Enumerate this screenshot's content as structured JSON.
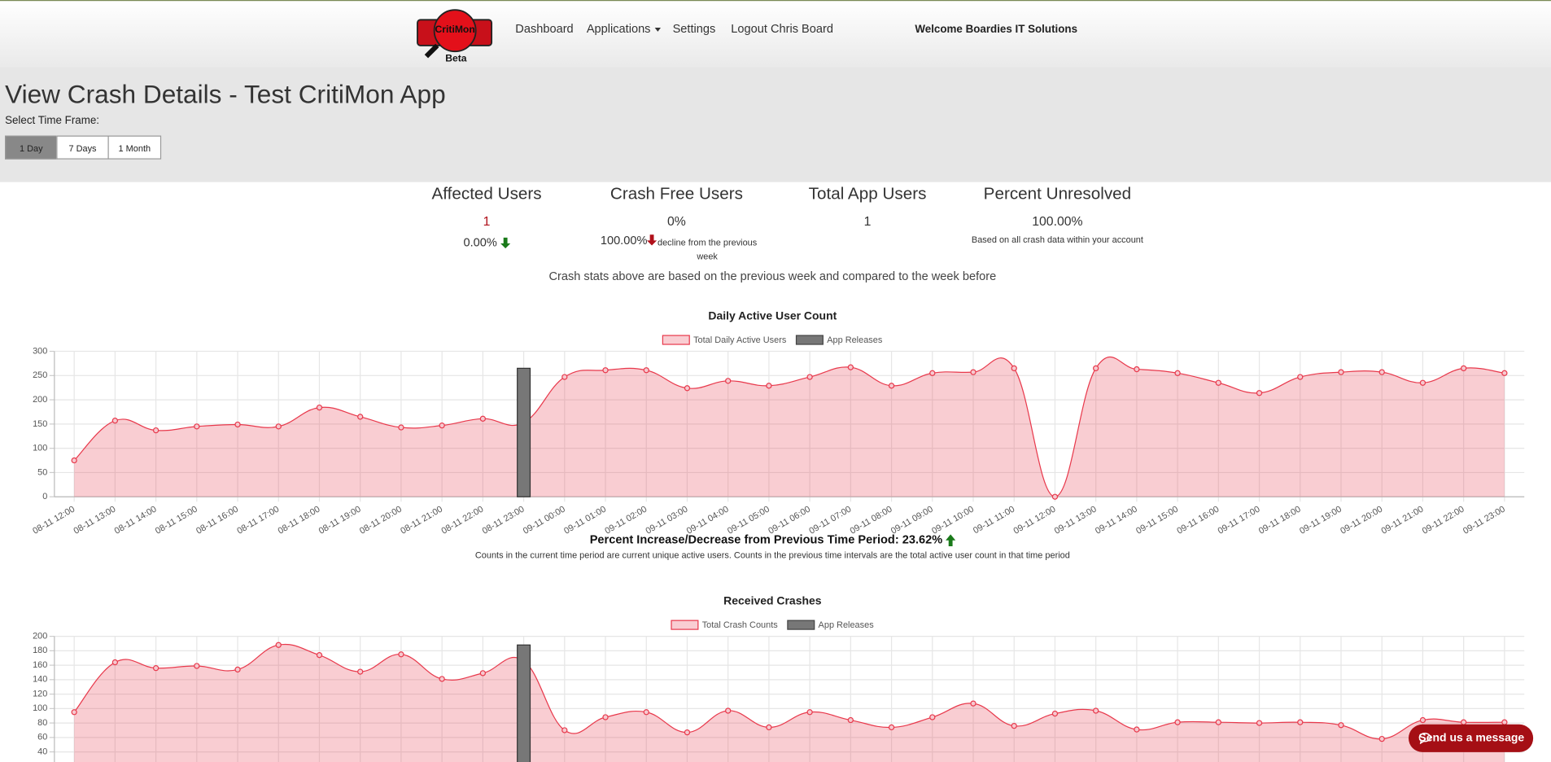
{
  "nav": {
    "logo_text": "CritiMon",
    "logo_sub": "Beta",
    "links": [
      "Dashboard",
      "Applications",
      "Settings",
      "Logout Chris Board"
    ],
    "welcome": "Welcome Boardies IT Solutions"
  },
  "header": {
    "title": "View Crash Details - Test CritiMon App",
    "timeframe_label": "Select Time Frame:",
    "timeframes": [
      "1 Day",
      "7 Days",
      "1 Month"
    ]
  },
  "stats": [
    {
      "title": "Affected Users",
      "value": "1",
      "change": "0.00%"
    },
    {
      "title": "Crash Free Users",
      "value": "0%",
      "change": "100.00%",
      "note": "decline from the previous week"
    },
    {
      "title": "Total App Users",
      "value": "1"
    },
    {
      "title": "Percent Unresolved",
      "value": "100.00%",
      "note": "Based on all crash data within your account"
    }
  ],
  "stats_note": "Crash stats above are based on the previous week and compared to the week before",
  "chart_data": [
    {
      "type": "line",
      "title": "Daily Active User Count",
      "categories": [
        "08-11 12:00",
        "08-11 13:00",
        "08-11 14:00",
        "08-11 15:00",
        "08-11 16:00",
        "08-11 17:00",
        "08-11 18:00",
        "08-11 19:00",
        "08-11 20:00",
        "08-11 21:00",
        "08-11 22:00",
        "08-11 23:00",
        "09-11 00:00",
        "09-11 01:00",
        "09-11 02:00",
        "09-11 03:00",
        "09-11 04:00",
        "09-11 05:00",
        "09-11 06:00",
        "09-11 07:00",
        "09-11 08:00",
        "09-11 09:00",
        "09-11 10:00",
        "09-11 11:00",
        "09-11 12:00",
        "09-11 13:00",
        "09-11 14:00",
        "09-11 15:00",
        "09-11 16:00",
        "09-11 17:00",
        "09-11 18:00",
        "09-11 19:00",
        "09-11 20:00",
        "09-11 21:00",
        "09-11 22:00",
        "09-11 23:00"
      ],
      "series": [
        {
          "name": "Total Daily Active Users",
          "type": "area",
          "color": "#e8394c",
          "values": [
            75,
            157,
            137,
            145,
            149,
            145,
            184,
            165,
            143,
            147,
            161,
            153,
            247,
            261,
            261,
            224,
            239,
            229,
            247,
            267,
            229,
            255,
            257,
            265,
            0,
            265,
            263,
            255,
            235,
            214,
            247,
            257,
            257,
            235,
            265,
            255
          ]
        },
        {
          "name": "App Releases",
          "type": "bar",
          "color": "#777777",
          "values": [
            null,
            null,
            null,
            null,
            null,
            null,
            null,
            null,
            null,
            null,
            null,
            265,
            null,
            null,
            null,
            null,
            null,
            null,
            null,
            null,
            null,
            null,
            null,
            null,
            null,
            null,
            null,
            null,
            null,
            null,
            null,
            null,
            null,
            null,
            null,
            null
          ]
        }
      ],
      "ylim": [
        0,
        300
      ],
      "yticks": [
        0,
        50,
        100,
        150,
        200,
        250,
        300
      ],
      "grid": true
    },
    {
      "type": "line",
      "title": "Received Crashes",
      "categories": [
        null,
        null,
        null,
        null,
        null,
        null,
        null,
        null,
        null,
        null,
        null,
        null,
        null,
        null,
        null,
        null,
        null,
        null,
        null,
        null,
        null,
        null,
        null,
        null,
        null,
        null,
        null,
        null,
        null,
        null,
        null,
        null,
        null,
        null,
        null,
        null
      ],
      "series": [
        {
          "name": "Total Crash Counts",
          "type": "area",
          "color": "#e8394c",
          "values": [
            95,
            164,
            156,
            159,
            154,
            188,
            174,
            151,
            175,
            141,
            149,
            166,
            70,
            88,
            95,
            67,
            97,
            74,
            95,
            84,
            74,
            88,
            107,
            76,
            93,
            97,
            71,
            81,
            81,
            80,
            81,
            77,
            58,
            84,
            81,
            81
          ]
        },
        {
          "name": "App Releases",
          "type": "bar",
          "color": "#777777",
          "values": [
            null,
            null,
            null,
            null,
            null,
            null,
            null,
            null,
            null,
            null,
            null,
            188,
            null,
            null,
            null,
            null,
            null,
            null,
            null,
            null,
            null,
            null,
            null,
            null,
            null,
            null,
            null,
            null,
            null,
            null,
            null,
            null,
            null,
            null,
            null,
            null
          ]
        }
      ],
      "ylim": [
        0,
        200
      ],
      "yticks": [
        40,
        60,
        80,
        100,
        120,
        140,
        160,
        180,
        200
      ],
      "grid": true
    }
  ],
  "chart_notes": {
    "percent_change": "Percent Increase/Decrease from Previous Time Period: 23.62%",
    "counts_note": "Counts in the current time period are current unique active users. Counts in the previous time intervals are the total active user count in that time period"
  },
  "chat_button": "Send us a message"
}
